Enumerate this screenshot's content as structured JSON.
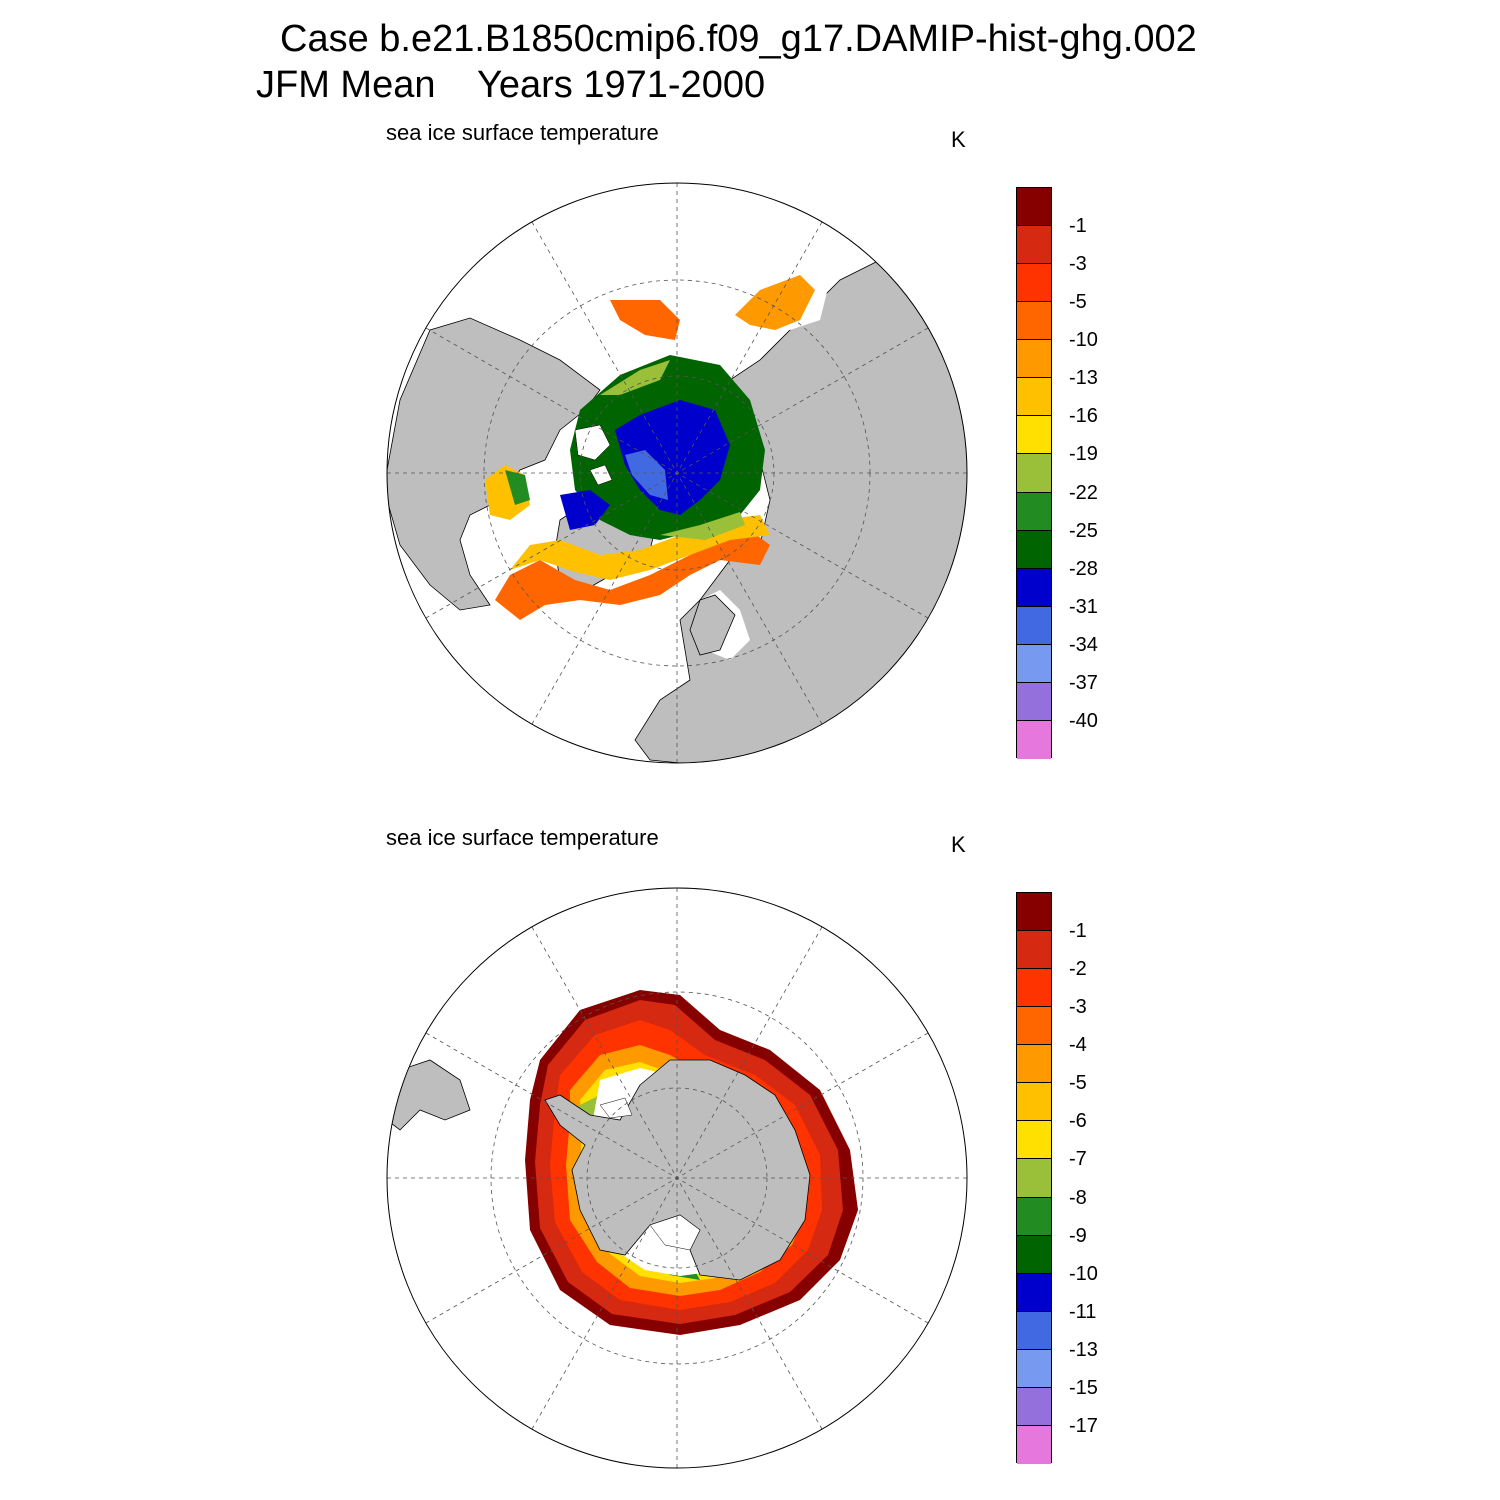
{
  "header": {
    "line1": "Case b.e21.B1850cmip6.f09_g17.DAMIP-hist-ghg.002",
    "line2_season": "JFM Mean",
    "line2_years": "Years 1971-2000"
  },
  "panels": [
    {
      "id": "north",
      "title": "sea ice surface temperature",
      "units": "K",
      "colorbar": {
        "colors": [
          "#870000",
          "#d62911",
          "#ff3300",
          "#ff6600",
          "#ff9900",
          "#ffc000",
          "#ffe000",
          "#9abf38",
          "#228b22",
          "#006400",
          "#0000cd",
          "#4169e1",
          "#7799f0",
          "#9370db",
          "#e677dc"
        ],
        "labels": [
          "-1",
          "-3",
          "-5",
          "-10",
          "-13",
          "-16",
          "-19",
          "-22",
          "-25",
          "-28",
          "-31",
          "-34",
          "-37",
          "-40"
        ]
      }
    },
    {
      "id": "south",
      "title": "sea ice surface temperature",
      "units": "K",
      "colorbar": {
        "colors": [
          "#870000",
          "#d62911",
          "#ff3300",
          "#ff6600",
          "#ff9900",
          "#ffc000",
          "#ffe000",
          "#9abf38",
          "#228b22",
          "#006400",
          "#0000cd",
          "#4169e1",
          "#7799f0",
          "#9370db",
          "#e677dc"
        ],
        "labels": [
          "-1",
          "-2",
          "-3",
          "-4",
          "-5",
          "-6",
          "-7",
          "-8",
          "-9",
          "-10",
          "-11",
          "-13",
          "-15",
          "-17"
        ]
      }
    }
  ]
}
